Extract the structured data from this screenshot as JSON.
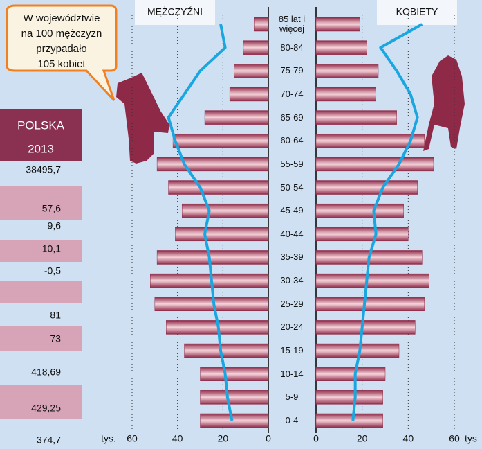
{
  "chart_data": {
    "type": "pyramid",
    "categories": [
      "85 lat i więcej",
      "80-84",
      "75-79",
      "70-74",
      "65-69",
      "60-64",
      "55-59",
      "50-54",
      "45-49",
      "40-44",
      "35-39",
      "30-34",
      "25-29",
      "20-24",
      "15-19",
      "10-14",
      "5-9",
      "0-4"
    ],
    "series": [
      {
        "name": "MĘŻCZYŹNI",
        "side": "left",
        "color": "#8e2a48",
        "values": [
          6,
          11,
          15,
          17,
          28,
          42,
          49,
          44,
          38,
          41,
          49,
          52,
          50,
          45,
          37,
          30,
          30,
          30
        ]
      },
      {
        "name": "KOBIETY",
        "side": "right",
        "color": "#8e2a48",
        "values": [
          19,
          22,
          27,
          26,
          35,
          47,
          51,
          44,
          38,
          40,
          46,
          49,
          47,
          43,
          36,
          30,
          29,
          29
        ]
      }
    ],
    "lines": [
      {
        "side": "left",
        "color": "#1aa6e0",
        "values": [
          21,
          19,
          30,
          37,
          44,
          41,
          37,
          30,
          26,
          28,
          26,
          25,
          24,
          22,
          21,
          19,
          18,
          16
        ]
      },
      {
        "side": "right",
        "color": "#1aa6e0",
        "values": [
          46,
          28,
          35,
          41,
          44,
          41,
          36,
          29,
          25,
          26,
          23,
          22,
          21,
          20,
          19,
          17,
          17,
          16
        ]
      }
    ],
    "xlim": [
      0,
      60
    ],
    "xticks": [
      0,
      20,
      40,
      60
    ],
    "x_unit_left": "tys.",
    "x_unit_right": "tys",
    "grid": true,
    "annotation": [
      "W województwie",
      "na 100 mężczyzn",
      "przypadało",
      "105 kobiet"
    ]
  },
  "side_table": {
    "header": [
      "POLSKA",
      "2013"
    ],
    "rows": [
      "38495,7",
      "57,6",
      "9,6",
      "10,1",
      "-0,5",
      "81",
      "73",
      "418,69",
      "429,25",
      "374,7"
    ]
  }
}
